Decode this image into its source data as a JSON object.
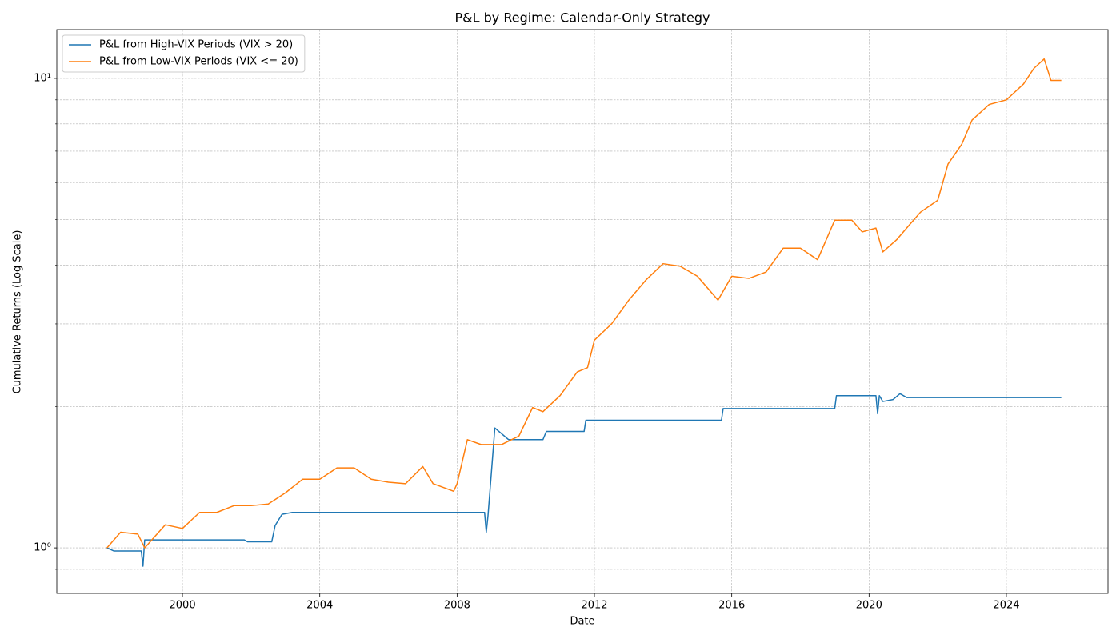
{
  "chart_data": {
    "type": "line",
    "title": "P&L by Regime: Calendar-Only Strategy",
    "xlabel": "Date",
    "ylabel": "Cumulative Returns (Log Scale)",
    "xlim": [
      1996.34,
      2026.96
    ],
    "xticks": [
      2000,
      2004,
      2008,
      2012,
      2016,
      2020,
      2024
    ],
    "ylim": [
      0.8,
      12.7
    ],
    "yscale": "log",
    "yticks": [
      {
        "value": 1,
        "label": "10⁰"
      },
      {
        "value": 10,
        "label": "10¹"
      }
    ],
    "yticks_minor": [
      0.9,
      2,
      3,
      4,
      5,
      6,
      7,
      8,
      9
    ],
    "grid": true,
    "legend": "upper left",
    "series": [
      {
        "name": "P&L from High-VIX Periods (VIX > 20)",
        "color": "#1f77b4",
        "x": [
          1997.8,
          1998.0,
          1998.8,
          1998.85,
          1998.9,
          2001.8,
          2001.9,
          2002.6,
          2002.7,
          2002.9,
          2003.2,
          2008.8,
          2008.85,
          2008.9,
          2009.0,
          2009.1,
          2009.5,
          2010.5,
          2010.6,
          2011.7,
          2011.75,
          2015.7,
          2015.75,
          2019.0,
          2019.05,
          2020.2,
          2020.25,
          2020.3,
          2020.4,
          2020.7,
          2020.9,
          2021.1,
          2025.6
        ],
        "values": [
          1.0,
          0.985,
          0.985,
          0.914,
          1.04,
          1.04,
          1.03,
          1.03,
          1.116,
          1.179,
          1.19,
          1.19,
          1.08,
          1.17,
          1.45,
          1.8,
          1.7,
          1.7,
          1.77,
          1.77,
          1.87,
          1.87,
          1.98,
          1.98,
          2.11,
          2.11,
          1.93,
          2.11,
          2.05,
          2.07,
          2.13,
          2.09,
          2.09
        ]
      },
      {
        "name": "P&L from Low-VIX Periods (VIX <= 20)",
        "color": "#ff7f0e",
        "x": [
          1997.8,
          1998.2,
          1998.7,
          1998.9,
          1999.5,
          2000.0,
          2000.5,
          2001.0,
          2001.5,
          2002.0,
          2002.5,
          2003.0,
          2003.5,
          2004.0,
          2004.5,
          2005.0,
          2005.5,
          2006.0,
          2006.5,
          2007.0,
          2007.3,
          2007.9,
          2008.0,
          2008.3,
          2008.7,
          2009.3,
          2009.8,
          2010.2,
          2010.5,
          2011.0,
          2011.5,
          2011.8,
          2012.0,
          2012.5,
          2013.0,
          2013.5,
          2014.0,
          2014.5,
          2015.0,
          2015.6,
          2016.0,
          2016.5,
          2017.0,
          2017.5,
          2018.0,
          2018.5,
          2019.0,
          2019.5,
          2019.8,
          2020.2,
          2020.4,
          2020.8,
          2021.2,
          2021.5,
          2022.0,
          2022.3,
          2022.7,
          2023.0,
          2023.5,
          2024.0,
          2024.5,
          2024.8,
          2025.1,
          2025.3,
          2025.6
        ],
        "values": [
          1.0,
          1.08,
          1.07,
          1.0,
          1.12,
          1.1,
          1.19,
          1.19,
          1.23,
          1.23,
          1.24,
          1.31,
          1.4,
          1.4,
          1.48,
          1.48,
          1.4,
          1.38,
          1.37,
          1.49,
          1.37,
          1.32,
          1.37,
          1.7,
          1.66,
          1.66,
          1.73,
          1.99,
          1.95,
          2.11,
          2.37,
          2.42,
          2.77,
          3.0,
          3.37,
          3.72,
          4.03,
          3.98,
          3.79,
          3.37,
          3.79,
          3.75,
          3.87,
          4.35,
          4.35,
          4.11,
          4.99,
          4.99,
          4.71,
          4.8,
          4.27,
          4.53,
          4.9,
          5.19,
          5.5,
          6.57,
          7.24,
          8.15,
          8.8,
          9.0,
          9.73,
          10.5,
          11.0,
          9.9,
          9.9
        ]
      }
    ]
  }
}
